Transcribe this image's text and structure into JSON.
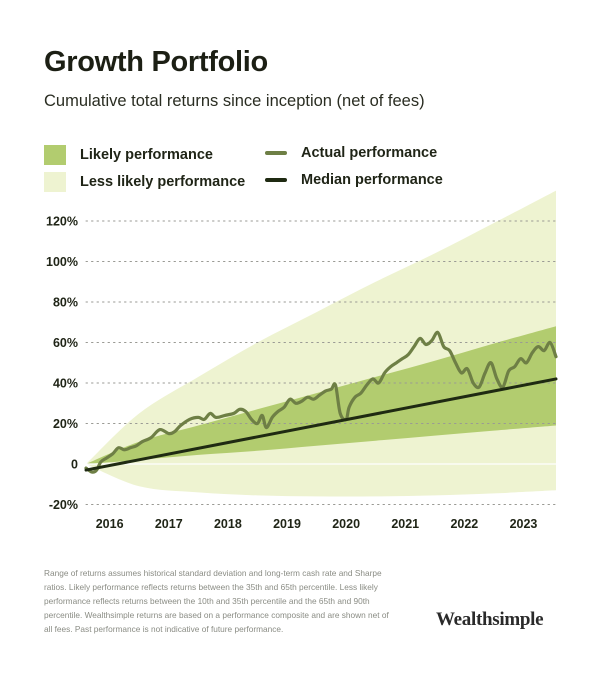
{
  "header": {
    "title": "Growth Portfolio",
    "subtitle": "Cumulative total returns since inception (net of fees)"
  },
  "legend": {
    "likely": "Likely performance",
    "less_likely": "Less likely performance",
    "actual": "Actual performance",
    "median": "Median performance"
  },
  "colors": {
    "likely_band": "#b2cc6f",
    "less_likely_band": "#eef3d1",
    "actual_line": "#6e7f45",
    "median_line": "#1f2a12",
    "grid": "#9a9a94"
  },
  "footer": {
    "note": "Range of returns assumes historical standard deviation and long-term cash rate and Sharpe ratios. Likely performance reflects returns between the 35th and 65th percentile. Less likely performance reflects returns between the 10th and 35th percentile and the 65th and 90th percentile. Wealthsimple returns are based on a performance composite and are shown net of all fees. Past performance is not indicative of future performance.",
    "brand": "Wealthsimple"
  },
  "chart_data": {
    "type": "line",
    "title": "Growth Portfolio",
    "xlim": [
      2015.6,
      2023.55
    ],
    "ylim": [
      -20,
      130
    ],
    "y_ticks": [
      -20,
      0,
      20,
      40,
      60,
      80,
      100,
      120
    ],
    "y_tick_labels": [
      "-20%",
      "0",
      "20%",
      "40%",
      "60%",
      "80%",
      "100%",
      "120%"
    ],
    "x_ticks": [
      2016,
      2017,
      2018,
      2019,
      2020,
      2021,
      2022,
      2023
    ],
    "x_tick_labels": [
      "2016",
      "2017",
      "2018",
      "2019",
      "2020",
      "2021",
      "2022",
      "2023"
    ],
    "grid": true,
    "legend_position": "top",
    "bands": {
      "less_likely": {
        "x": [
          2015.6,
          2016.5,
          2017.5,
          2018.5,
          2019.5,
          2020.5,
          2021.5,
          2022.5,
          2023.55
        ],
        "upper": [
          0,
          25,
          43,
          60,
          75,
          90,
          104,
          119,
          135
        ],
        "lower": [
          0,
          -11,
          -14,
          -15.5,
          -16,
          -16,
          -15.5,
          -14.5,
          -13
        ]
      },
      "likely": {
        "x": [
          2015.6,
          2016.5,
          2017.5,
          2018.5,
          2019.5,
          2020.5,
          2021.5,
          2022.5,
          2023.55
        ],
        "upper": [
          0,
          11,
          19,
          27,
          35,
          43,
          51,
          59.5,
          68
        ],
        "lower": [
          0,
          2,
          4.5,
          6.5,
          9,
          11.5,
          14,
          16.5,
          19
        ]
      }
    },
    "series": [
      {
        "name": "Actual performance",
        "x": [
          2015.6,
          2015.7,
          2015.78,
          2015.85,
          2015.95,
          2016.05,
          2016.15,
          2016.25,
          2016.35,
          2016.45,
          2016.55,
          2016.7,
          2016.85,
          2017.0,
          2017.1,
          2017.2,
          2017.35,
          2017.5,
          2017.6,
          2017.7,
          2017.8,
          2017.95,
          2018.1,
          2018.2,
          2018.3,
          2018.4,
          2018.5,
          2018.58,
          2018.65,
          2018.75,
          2018.85,
          2018.95,
          2019.05,
          2019.15,
          2019.25,
          2019.35,
          2019.45,
          2019.55,
          2019.65,
          2019.75,
          2019.82,
          2019.9,
          2020.0,
          2020.05,
          2020.15,
          2020.25,
          2020.35,
          2020.45,
          2020.55,
          2020.65,
          2020.75,
          2020.85,
          2020.95,
          2021.05,
          2021.15,
          2021.25,
          2021.35,
          2021.45,
          2021.55,
          2021.65,
          2021.75,
          2021.85,
          2021.95,
          2022.05,
          2022.15,
          2022.25,
          2022.35,
          2022.45,
          2022.55,
          2022.65,
          2022.75,
          2022.85,
          2022.95,
          2023.05,
          2023.15,
          2023.25,
          2023.35,
          2023.45,
          2023.55
        ],
        "y": [
          -2,
          -4,
          -3,
          1,
          3,
          5,
          8,
          7,
          8,
          9,
          11,
          13,
          17,
          15,
          16,
          19,
          22,
          23,
          22,
          25,
          23,
          24,
          25,
          27,
          26,
          22,
          20,
          24,
          18,
          23,
          26,
          28,
          32,
          30,
          31,
          33,
          32,
          34,
          36,
          37,
          39,
          25,
          22,
          28,
          33,
          35,
          39,
          42,
          40,
          45,
          48,
          50,
          52,
          54,
          58,
          62,
          59,
          61,
          65,
          58,
          56,
          50,
          45,
          47,
          40,
          38,
          45,
          50,
          42,
          38,
          46,
          48,
          52,
          50,
          55,
          58,
          56,
          60,
          53
        ]
      },
      {
        "name": "Median performance",
        "x": [
          2015.6,
          2023.55
        ],
        "y": [
          -3,
          42
        ]
      }
    ]
  }
}
